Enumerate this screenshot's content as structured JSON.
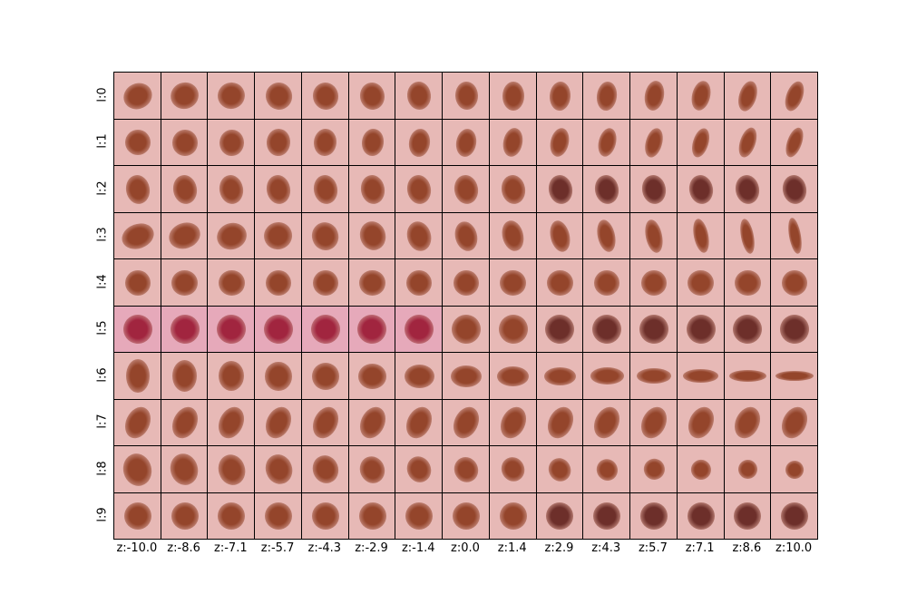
{
  "row_labels": [
    "l:0",
    "l:1",
    "l:2",
    "l:3",
    "l:4",
    "l:5",
    "l:6",
    "l:7",
    "l:8",
    "l:9"
  ],
  "col_labels": [
    "z:-10.0",
    "z:-8.6",
    "z:-7.1",
    "z:-5.7",
    "z:-4.3",
    "z:-2.9",
    "z:-1.4",
    "z:0.0",
    "z:1.4",
    "z:2.9",
    "z:4.3",
    "z:5.7",
    "z:7.1",
    "z:8.6",
    "z:10.0"
  ],
  "colors": {
    "skin": "#e7b9b6",
    "skin_pink": "#e6a9ba",
    "lesion": "#94452b",
    "lesion_dark": "#6d2f2a",
    "lesion_red": "#a1253f",
    "border": "#000000"
  }
}
